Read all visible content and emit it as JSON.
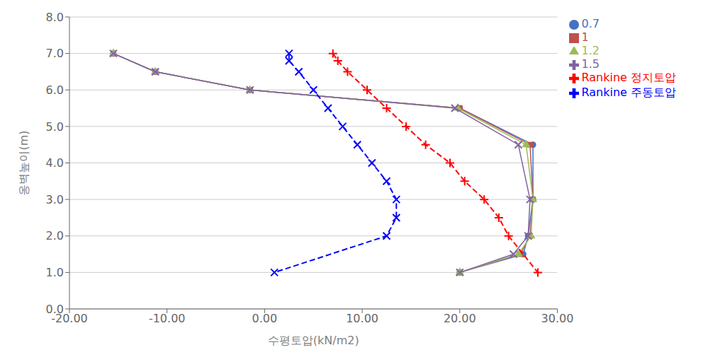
{
  "chart_data": {
    "type": "line",
    "xlabel": "수평토압(kN/m2)",
    "ylabel": "옹벽높이(m)",
    "xlim": [
      -20.0,
      30.0
    ],
    "ylim": [
      0.0,
      8.0
    ],
    "xticks": [
      {
        "value": -20.0,
        "label": "-20.00"
      },
      {
        "value": -10.0,
        "label": "-10.00"
      },
      {
        "value": 0.0,
        "label": "0.00"
      },
      {
        "value": 10.0,
        "label": "10.00"
      },
      {
        "value": 20.0,
        "label": "20.00"
      },
      {
        "value": 30.0,
        "label": "30.00"
      }
    ],
    "yticks": [
      {
        "value": 0.0,
        "label": "0.0"
      },
      {
        "value": 1.0,
        "label": "1.0"
      },
      {
        "value": 2.0,
        "label": "2.0"
      },
      {
        "value": 3.0,
        "label": "3.0"
      },
      {
        "value": 4.0,
        "label": "4.0"
      },
      {
        "value": 5.0,
        "label": "5.0"
      },
      {
        "value": 6.0,
        "label": "6.0"
      },
      {
        "value": 7.0,
        "label": "7.0"
      },
      {
        "value": 8.0,
        "label": "8.0"
      }
    ],
    "grid": "y",
    "legend": "upper right",
    "series": [
      {
        "name": "0.7",
        "color": "#4472C4",
        "marker": "circle",
        "line_style": "solid",
        "x": [
          -15.5,
          -11.2,
          -1.5,
          20.0,
          27.5,
          27.5,
          27.0,
          26.5,
          20.0
        ],
        "values": [
          7.0,
          6.5,
          6.0,
          5.5,
          4.5,
          3.0,
          2.0,
          1.5,
          1.0
        ]
      },
      {
        "name": "1",
        "color": "#C0504D",
        "marker": "square",
        "line_style": "solid",
        "x": [
          -15.5,
          -11.2,
          -1.5,
          20.0,
          27.2,
          27.5,
          27.2,
          26.2,
          20.0
        ],
        "values": [
          7.0,
          6.5,
          6.0,
          5.5,
          4.5,
          3.0,
          2.0,
          1.5,
          1.0
        ]
      },
      {
        "name": "1.2",
        "color": "#9BBB59",
        "marker": "triangle",
        "line_style": "solid",
        "x": [
          -15.5,
          -11.2,
          -1.5,
          19.8,
          26.8,
          27.5,
          27.3,
          26.0,
          20.0
        ],
        "values": [
          7.0,
          6.5,
          6.0,
          5.5,
          4.5,
          3.0,
          2.0,
          1.5,
          1.0
        ]
      },
      {
        "name": "1.5",
        "color": "#8064A2",
        "marker": "x",
        "line_style": "solid",
        "x": [
          -15.5,
          -11.2,
          -1.5,
          19.5,
          26.0,
          27.2,
          27.0,
          25.5,
          20.0
        ],
        "values": [
          7.0,
          6.5,
          6.0,
          5.5,
          4.5,
          3.0,
          2.0,
          1.5,
          1.0
        ]
      },
      {
        "name": "Rankine 주동토압",
        "color": "#0000FF",
        "marker": "x",
        "line_style": "dashed",
        "x": [
          2.5,
          2.5,
          3.5,
          5.0,
          6.5,
          8.0,
          9.5,
          11.0,
          12.5,
          13.5,
          13.5,
          12.5,
          1.0
        ],
        "values": [
          7.0,
          6.8,
          6.5,
          6.0,
          5.5,
          5.0,
          4.5,
          4.0,
          3.5,
          3.0,
          2.5,
          2.0,
          1.0
        ]
      },
      {
        "name": "Rankine 정지토압",
        "color": "#FF0000",
        "marker": "plus",
        "line_style": "dashed",
        "x": [
          7.0,
          7.5,
          8.5,
          10.5,
          12.5,
          14.5,
          16.5,
          19.0,
          20.5,
          22.5,
          24.0,
          25.0,
          28.0
        ],
        "values": [
          7.0,
          6.8,
          6.5,
          6.0,
          5.5,
          5.0,
          4.5,
          4.0,
          3.5,
          3.0,
          2.5,
          2.0,
          1.0
        ]
      }
    ]
  }
}
